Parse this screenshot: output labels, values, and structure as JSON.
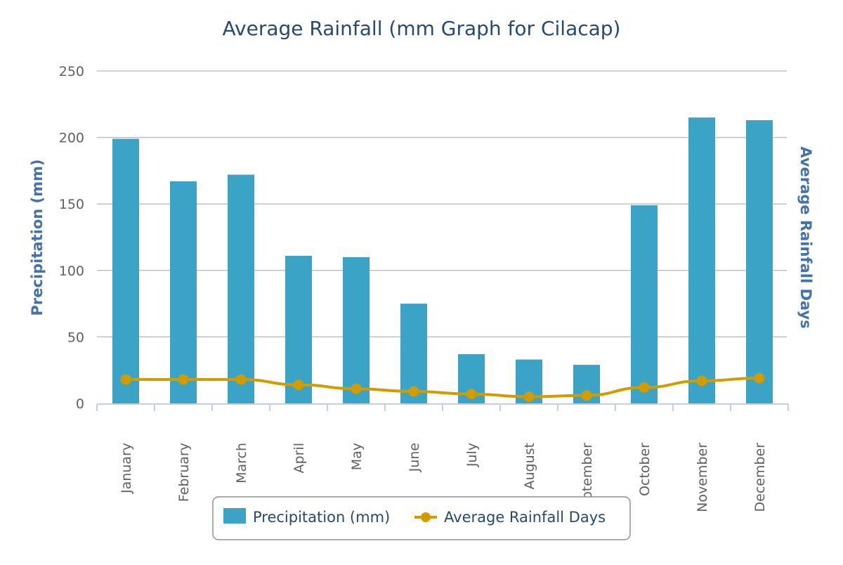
{
  "chart_data": {
    "type": "bar+line",
    "title": "Average Rainfall (mm Graph for Cilacap)",
    "categories": [
      "January",
      "February",
      "March",
      "April",
      "May",
      "June",
      "July",
      "August",
      "September",
      "October",
      "November",
      "December"
    ],
    "series": [
      {
        "name": "Precipitation (mm)",
        "type": "bar",
        "color": "#3ba3c5",
        "values": [
          199,
          167,
          172,
          111,
          110,
          75,
          37,
          33,
          29,
          149,
          215,
          213
        ]
      },
      {
        "name": "Average Rainfall Days",
        "type": "line",
        "color": "#d19c00",
        "values": [
          18,
          18,
          18,
          14,
          11,
          9,
          7,
          5,
          6,
          12,
          17,
          19
        ]
      }
    ],
    "ylabel": "Precipitation (mm)",
    "y2label": "Average Rainfall Days",
    "ylim": [
      0,
      250
    ],
    "yticks": [
      "0",
      "50",
      "100",
      "150",
      "200",
      "250"
    ],
    "grid": true,
    "legend": "bottom-center"
  }
}
